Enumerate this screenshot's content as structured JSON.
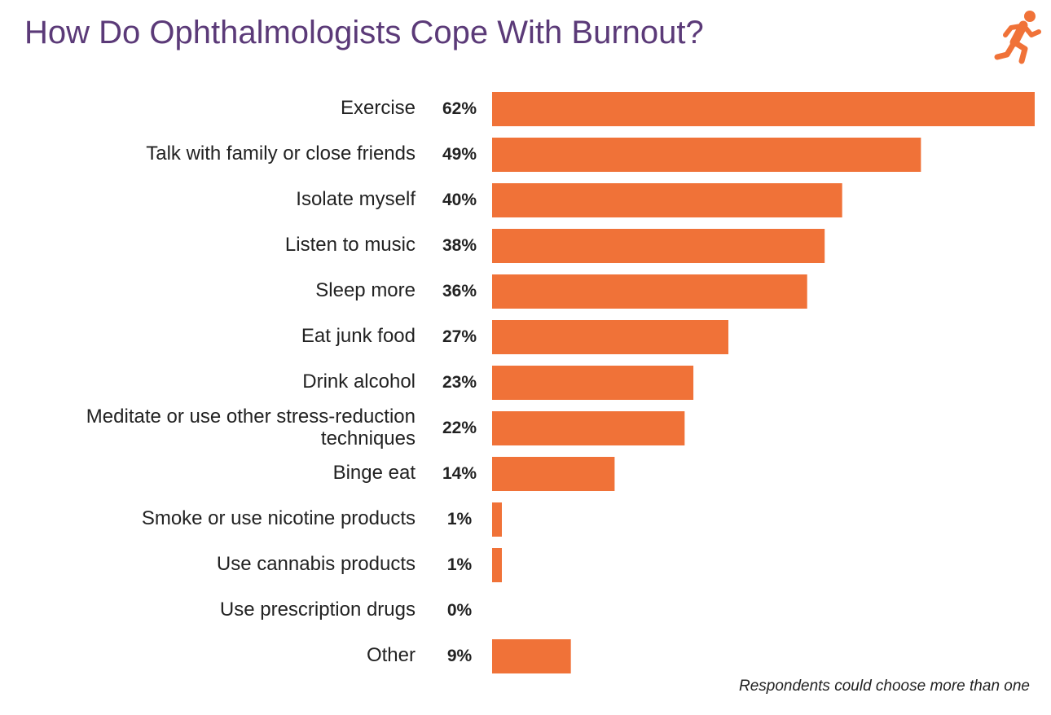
{
  "title": "How Do Ophthalmologists Cope With Burnout?",
  "note": "Respondents could choose more than one",
  "icon": "running-person-icon",
  "colors": {
    "bar": "#f07238",
    "title": "#5b3a78",
    "text": "#222222"
  },
  "chart_data": {
    "type": "bar",
    "orientation": "horizontal",
    "categories": [
      "Exercise",
      "Talk with family or close friends",
      "Isolate myself",
      "Listen to music",
      "Sleep more",
      "Eat junk food",
      "Drink alcohol",
      "Meditate or use other stress-reduction techniques",
      "Binge eat",
      "Smoke or use nicotine products",
      "Use cannabis products",
      "Use prescription drugs",
      "Other"
    ],
    "values": [
      62,
      49,
      40,
      38,
      36,
      27,
      23,
      22,
      14,
      1,
      1,
      0,
      9
    ],
    "value_labels": [
      "62%",
      "49%",
      "40%",
      "38%",
      "36%",
      "27%",
      "23%",
      "22%",
      "14%",
      "1%",
      "1%",
      "0%",
      "9%"
    ],
    "xlim": [
      0,
      62
    ],
    "grid": false,
    "legend": "none"
  }
}
